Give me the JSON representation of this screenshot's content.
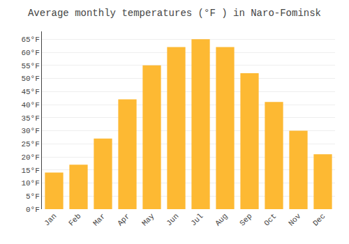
{
  "chart_data": {
    "type": "bar",
    "title": "Average monthly temperatures (°F ) in Naro-Fominsk",
    "categories": [
      "Jan",
      "Feb",
      "Mar",
      "Apr",
      "May",
      "Jun",
      "Jul",
      "Aug",
      "Sep",
      "Oct",
      "Nov",
      "Dec"
    ],
    "values": [
      14,
      17,
      27,
      42,
      55,
      62,
      65,
      62,
      52,
      41,
      30,
      21
    ],
    "color": "#FDB933",
    "ylim": [
      0,
      68
    ],
    "yticks": [
      {
        "value": 0,
        "label": "0°F"
      },
      {
        "value": 5,
        "label": "5°F"
      },
      {
        "value": 10,
        "label": "10°F"
      },
      {
        "value": 15,
        "label": "15°F"
      },
      {
        "value": 20,
        "label": "20°F"
      },
      {
        "value": 25,
        "label": "25°F"
      },
      {
        "value": 30,
        "label": "30°F"
      },
      {
        "value": 35,
        "label": "35°F"
      },
      {
        "value": 40,
        "label": "40°F"
      },
      {
        "value": 45,
        "label": "45°F"
      },
      {
        "value": 50,
        "label": "50°F"
      },
      {
        "value": 55,
        "label": "55°F"
      },
      {
        "value": 60,
        "label": "60°F"
      },
      {
        "value": 65,
        "label": "65°F"
      }
    ],
    "grid": true
  }
}
